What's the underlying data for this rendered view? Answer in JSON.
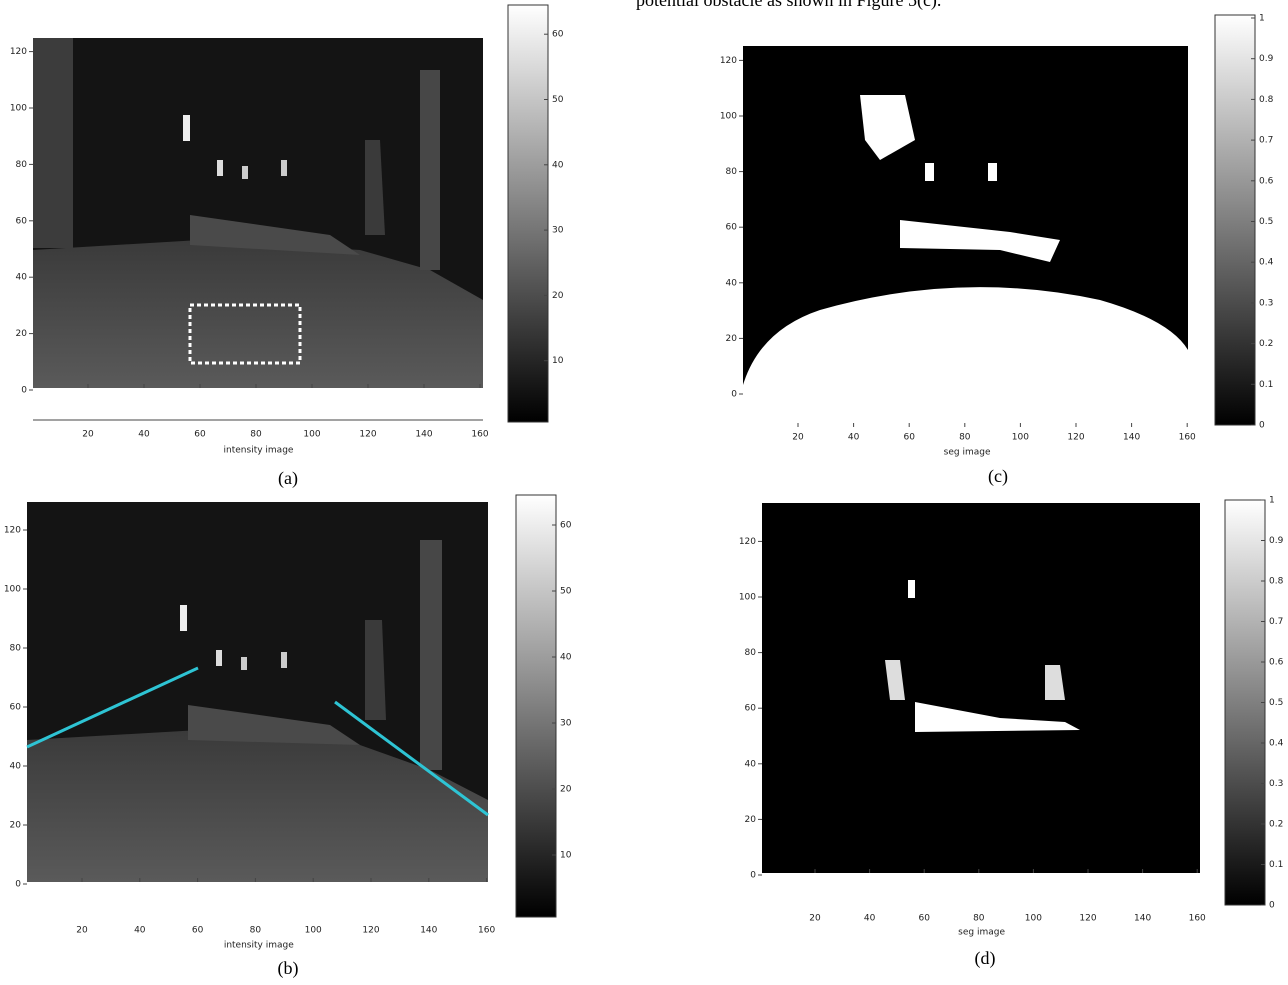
{
  "header_text": "potential obstacle as shown in Figure 5(c).",
  "panels": [
    {
      "caption": "(a)",
      "x_label": "intensity image",
      "x_ticks": [
        20,
        40,
        60,
        80,
        100,
        120,
        140,
        160
      ],
      "y_ticks": [
        0,
        20,
        40,
        60,
        80,
        100,
        120
      ],
      "colorbar_ticks": [
        10,
        20,
        30,
        40,
        50,
        60
      ]
    },
    {
      "caption": "(b)",
      "x_label": "intensity image",
      "x_ticks": [
        20,
        40,
        60,
        80,
        100,
        120,
        140,
        160
      ],
      "y_ticks": [
        0,
        20,
        40,
        60,
        80,
        100,
        120
      ],
      "colorbar_ticks": [
        10,
        20,
        30,
        40,
        50,
        60
      ]
    },
    {
      "caption": "(c)",
      "x_label": "seg image",
      "x_ticks": [
        20,
        40,
        60,
        80,
        100,
        120,
        140,
        160
      ],
      "y_ticks": [
        0,
        20,
        40,
        60,
        80,
        100,
        120
      ],
      "colorbar_ticks": [
        0,
        0.1,
        0.2,
        0.3,
        0.4,
        0.5,
        0.6,
        0.7,
        0.8,
        0.9,
        1
      ]
    },
    {
      "caption": "(d)",
      "x_label": "seg image",
      "x_ticks": [
        20,
        40,
        60,
        80,
        100,
        120,
        140,
        160
      ],
      "y_ticks": [
        0,
        20,
        40,
        60,
        80,
        100,
        120
      ],
      "colorbar_ticks": [
        0,
        0.1,
        0.2,
        0.3,
        0.4,
        0.5,
        0.6,
        0.7,
        0.8,
        0.9,
        1
      ]
    }
  ]
}
